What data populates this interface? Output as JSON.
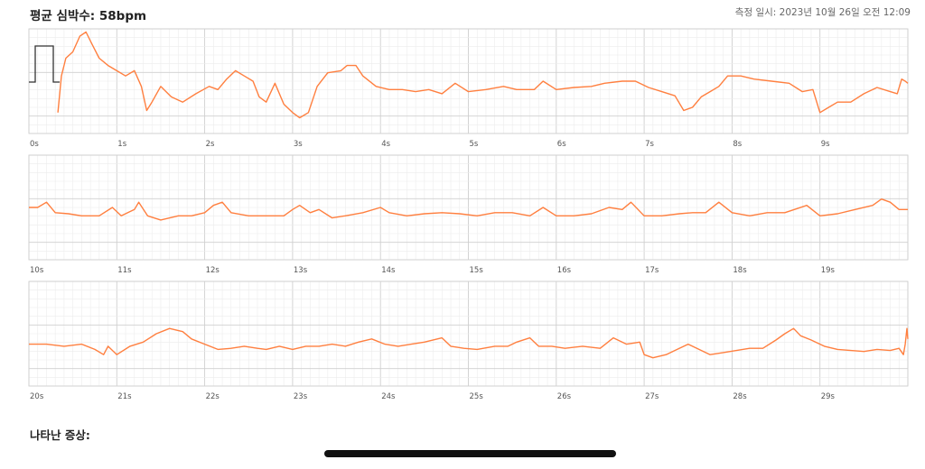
{
  "header": {
    "average_hr": "평균 심박수: 58bpm",
    "measured_at": "측정 일시: 2023년 10월 26일 오전 12:09"
  },
  "symptoms_label": "나타난 증상:",
  "colors": {
    "trace": "#ff7f3f",
    "grid_minor": "#ececec",
    "grid_major": "#cfcfcf",
    "calibration": "#333333"
  },
  "chart_data": {
    "type": "line",
    "title": "",
    "xlabel": "",
    "ylabel": "",
    "grid": true,
    "calibration_pulse": true,
    "strips": [
      {
        "xlim": [
          0,
          10
        ],
        "tick_labels": [
          "0s",
          "1s",
          "2s",
          "3s",
          "4s",
          "5s",
          "6s",
          "7s",
          "8s",
          "9s"
        ],
        "points": [
          [
            0.33,
            0.2
          ],
          [
            0.37,
            0.55
          ],
          [
            0.42,
            0.72
          ],
          [
            0.5,
            0.78
          ],
          [
            0.58,
            0.93
          ],
          [
            0.65,
            0.97
          ],
          [
            0.72,
            0.85
          ],
          [
            0.8,
            0.72
          ],
          [
            0.9,
            0.65
          ],
          [
            1.0,
            0.6
          ],
          [
            1.1,
            0.55
          ],
          [
            1.2,
            0.6
          ],
          [
            1.28,
            0.45
          ],
          [
            1.34,
            0.22
          ],
          [
            1.4,
            0.3
          ],
          [
            1.5,
            0.45
          ],
          [
            1.62,
            0.35
          ],
          [
            1.75,
            0.3
          ],
          [
            1.9,
            0.38
          ],
          [
            2.05,
            0.45
          ],
          [
            2.15,
            0.42
          ],
          [
            2.25,
            0.52
          ],
          [
            2.35,
            0.6
          ],
          [
            2.45,
            0.55
          ],
          [
            2.55,
            0.5
          ],
          [
            2.62,
            0.35
          ],
          [
            2.7,
            0.3
          ],
          [
            2.8,
            0.48
          ],
          [
            2.9,
            0.28
          ],
          [
            3.0,
            0.2
          ],
          [
            3.08,
            0.15
          ],
          [
            3.18,
            0.2
          ],
          [
            3.28,
            0.45
          ],
          [
            3.4,
            0.58
          ],
          [
            3.55,
            0.6
          ],
          [
            3.62,
            0.65
          ],
          [
            3.72,
            0.65
          ],
          [
            3.8,
            0.55
          ],
          [
            3.95,
            0.45
          ],
          [
            4.1,
            0.42
          ],
          [
            4.25,
            0.42
          ],
          [
            4.4,
            0.4
          ],
          [
            4.55,
            0.42
          ],
          [
            4.7,
            0.38
          ],
          [
            4.85,
            0.48
          ],
          [
            5.0,
            0.4
          ],
          [
            5.2,
            0.42
          ],
          [
            5.4,
            0.45
          ],
          [
            5.55,
            0.42
          ],
          [
            5.75,
            0.42
          ],
          [
            5.85,
            0.5
          ],
          [
            6.0,
            0.42
          ],
          [
            6.2,
            0.44
          ],
          [
            6.4,
            0.45
          ],
          [
            6.55,
            0.48
          ],
          [
            6.75,
            0.5
          ],
          [
            6.9,
            0.5
          ],
          [
            7.05,
            0.44
          ],
          [
            7.2,
            0.4
          ],
          [
            7.35,
            0.36
          ],
          [
            7.45,
            0.22
          ],
          [
            7.55,
            0.25
          ],
          [
            7.65,
            0.35
          ],
          [
            7.75,
            0.4
          ],
          [
            7.85,
            0.45
          ],
          [
            7.95,
            0.55
          ],
          [
            8.1,
            0.55
          ],
          [
            8.25,
            0.52
          ],
          [
            8.45,
            0.5
          ],
          [
            8.65,
            0.48
          ],
          [
            8.8,
            0.4
          ],
          [
            8.92,
            0.42
          ],
          [
            9.0,
            0.2
          ],
          [
            9.1,
            0.25
          ],
          [
            9.2,
            0.3
          ],
          [
            9.35,
            0.3
          ],
          [
            9.5,
            0.38
          ],
          [
            9.65,
            0.44
          ],
          [
            9.8,
            0.4
          ],
          [
            9.88,
            0.38
          ],
          [
            9.93,
            0.52
          ],
          [
            9.97,
            0.5
          ],
          [
            10.0,
            0.48
          ]
        ]
      },
      {
        "xlim": [
          10,
          20
        ],
        "tick_labels": [
          "10s",
          "11s",
          "12s",
          "13s",
          "14s",
          "15s",
          "16s",
          "17s",
          "18s",
          "19s"
        ],
        "points": [
          [
            10.0,
            0.5
          ],
          [
            10.1,
            0.5
          ],
          [
            10.2,
            0.55
          ],
          [
            10.3,
            0.45
          ],
          [
            10.45,
            0.44
          ],
          [
            10.6,
            0.42
          ],
          [
            10.8,
            0.42
          ],
          [
            10.95,
            0.5
          ],
          [
            11.05,
            0.42
          ],
          [
            11.2,
            0.48
          ],
          [
            11.25,
            0.55
          ],
          [
            11.35,
            0.42
          ],
          [
            11.5,
            0.38
          ],
          [
            11.7,
            0.42
          ],
          [
            11.85,
            0.42
          ],
          [
            12.0,
            0.45
          ],
          [
            12.1,
            0.52
          ],
          [
            12.2,
            0.55
          ],
          [
            12.3,
            0.45
          ],
          [
            12.5,
            0.42
          ],
          [
            12.7,
            0.42
          ],
          [
            12.9,
            0.42
          ],
          [
            13.0,
            0.48
          ],
          [
            13.08,
            0.52
          ],
          [
            13.2,
            0.45
          ],
          [
            13.3,
            0.48
          ],
          [
            13.45,
            0.4
          ],
          [
            13.6,
            0.42
          ],
          [
            13.8,
            0.45
          ],
          [
            14.0,
            0.5
          ],
          [
            14.1,
            0.45
          ],
          [
            14.3,
            0.42
          ],
          [
            14.5,
            0.44
          ],
          [
            14.7,
            0.45
          ],
          [
            14.9,
            0.44
          ],
          [
            15.1,
            0.42
          ],
          [
            15.3,
            0.45
          ],
          [
            15.5,
            0.45
          ],
          [
            15.7,
            0.42
          ],
          [
            15.85,
            0.5
          ],
          [
            16.0,
            0.42
          ],
          [
            16.2,
            0.42
          ],
          [
            16.4,
            0.44
          ],
          [
            16.6,
            0.5
          ],
          [
            16.75,
            0.48
          ],
          [
            16.85,
            0.55
          ],
          [
            17.0,
            0.42
          ],
          [
            17.2,
            0.42
          ],
          [
            17.4,
            0.44
          ],
          [
            17.55,
            0.45
          ],
          [
            17.7,
            0.45
          ],
          [
            17.85,
            0.55
          ],
          [
            18.0,
            0.45
          ],
          [
            18.2,
            0.42
          ],
          [
            18.4,
            0.45
          ],
          [
            18.6,
            0.45
          ],
          [
            18.85,
            0.52
          ],
          [
            19.0,
            0.42
          ],
          [
            19.2,
            0.44
          ],
          [
            19.4,
            0.48
          ],
          [
            19.6,
            0.52
          ],
          [
            19.7,
            0.58
          ],
          [
            19.8,
            0.55
          ],
          [
            19.9,
            0.48
          ],
          [
            20.0,
            0.48
          ]
        ]
      },
      {
        "xlim": [
          20,
          30
        ],
        "tick_labels": [
          "20s",
          "21s",
          "22s",
          "23s",
          "24s",
          "25s",
          "26s",
          "27s",
          "28s",
          "29s"
        ],
        "points": [
          [
            20.0,
            0.4
          ],
          [
            20.2,
            0.4
          ],
          [
            20.4,
            0.38
          ],
          [
            20.6,
            0.4
          ],
          [
            20.75,
            0.35
          ],
          [
            20.85,
            0.3
          ],
          [
            20.9,
            0.38
          ],
          [
            21.0,
            0.3
          ],
          [
            21.15,
            0.38
          ],
          [
            21.3,
            0.42
          ],
          [
            21.45,
            0.5
          ],
          [
            21.6,
            0.55
          ],
          [
            21.75,
            0.52
          ],
          [
            21.85,
            0.45
          ],
          [
            22.0,
            0.4
          ],
          [
            22.15,
            0.35
          ],
          [
            22.3,
            0.36
          ],
          [
            22.45,
            0.38
          ],
          [
            22.6,
            0.36
          ],
          [
            22.7,
            0.35
          ],
          [
            22.85,
            0.38
          ],
          [
            23.0,
            0.35
          ],
          [
            23.15,
            0.38
          ],
          [
            23.3,
            0.38
          ],
          [
            23.45,
            0.4
          ],
          [
            23.6,
            0.38
          ],
          [
            23.75,
            0.42
          ],
          [
            23.9,
            0.45
          ],
          [
            24.05,
            0.4
          ],
          [
            24.2,
            0.38
          ],
          [
            24.35,
            0.4
          ],
          [
            24.5,
            0.42
          ],
          [
            24.7,
            0.46
          ],
          [
            24.8,
            0.38
          ],
          [
            24.95,
            0.36
          ],
          [
            25.1,
            0.35
          ],
          [
            25.3,
            0.38
          ],
          [
            25.45,
            0.38
          ],
          [
            25.55,
            0.42
          ],
          [
            25.7,
            0.46
          ],
          [
            25.8,
            0.38
          ],
          [
            25.95,
            0.38
          ],
          [
            26.1,
            0.36
          ],
          [
            26.3,
            0.38
          ],
          [
            26.5,
            0.36
          ],
          [
            26.65,
            0.46
          ],
          [
            26.8,
            0.4
          ],
          [
            26.95,
            0.42
          ],
          [
            27.0,
            0.3
          ],
          [
            27.1,
            0.27
          ],
          [
            27.25,
            0.3
          ],
          [
            27.4,
            0.36
          ],
          [
            27.5,
            0.4
          ],
          [
            27.6,
            0.36
          ],
          [
            27.75,
            0.3
          ],
          [
            27.9,
            0.32
          ],
          [
            28.05,
            0.34
          ],
          [
            28.2,
            0.36
          ],
          [
            28.35,
            0.36
          ],
          [
            28.5,
            0.44
          ],
          [
            28.6,
            0.5
          ],
          [
            28.7,
            0.55
          ],
          [
            28.78,
            0.48
          ],
          [
            28.9,
            0.44
          ],
          [
            29.05,
            0.38
          ],
          [
            29.2,
            0.35
          ],
          [
            29.35,
            0.34
          ],
          [
            29.5,
            0.33
          ],
          [
            29.65,
            0.35
          ],
          [
            29.8,
            0.34
          ],
          [
            29.9,
            0.36
          ],
          [
            29.95,
            0.3
          ],
          [
            29.97,
            0.4
          ],
          [
            29.99,
            0.55
          ],
          [
            30.0,
            0.45
          ]
        ]
      }
    ]
  }
}
